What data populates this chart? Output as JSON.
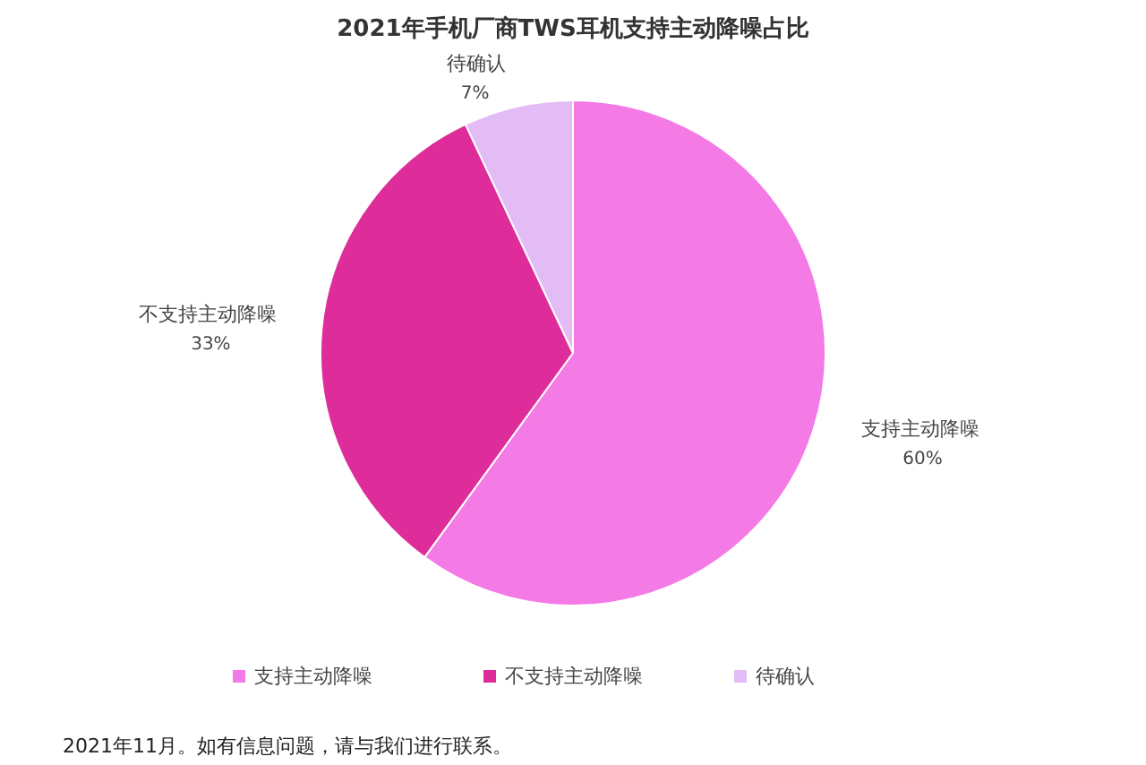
{
  "chart_data": {
    "type": "pie",
    "title": "2021年手机厂商TWS耳机支持主动降噪占比",
    "categories": [
      "支持主动降噪",
      "不支持主动降噪",
      "待确认"
    ],
    "values": [
      60,
      33,
      7
    ],
    "colors": [
      "#f47ae6",
      "#de2d9b",
      "#e3bcf6"
    ],
    "value_labels": [
      "60%",
      "33%",
      "7%"
    ],
    "legend": "bottom",
    "annotations": [
      "2021年11月。如有信息问题，请与我们进行联系。"
    ]
  }
}
